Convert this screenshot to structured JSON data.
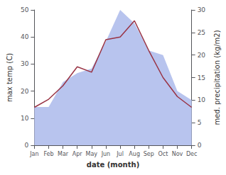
{
  "chart_data": {
    "type": "line",
    "xlabel": "date (month)",
    "ylabel": "max temp (C)",
    "y2label": "med. precipitation (kg/m2)",
    "categories": [
      "Jan",
      "Feb",
      "Mar",
      "Apr",
      "May",
      "Jun",
      "Jul",
      "Aug",
      "Sep",
      "Oct",
      "Nov",
      "Dec"
    ],
    "ylim": [
      0,
      50
    ],
    "yticks": [
      0,
      10,
      20,
      30,
      40,
      50
    ],
    "y2lim": [
      0,
      30
    ],
    "y2ticks": [
      0,
      5,
      10,
      15,
      20,
      25,
      30
    ],
    "grid": false,
    "series": [
      {
        "type": "area",
        "axis": "y2",
        "color": "#b8c4ee",
        "values": [
          8.5,
          8.5,
          14,
          16,
          17,
          23,
          30,
          27,
          21,
          20,
          12,
          10
        ]
      },
      {
        "type": "line",
        "color": "#993344",
        "values": [
          14,
          17,
          22,
          29,
          27,
          39,
          40,
          46,
          35,
          25,
          18,
          14
        ]
      }
    ]
  }
}
